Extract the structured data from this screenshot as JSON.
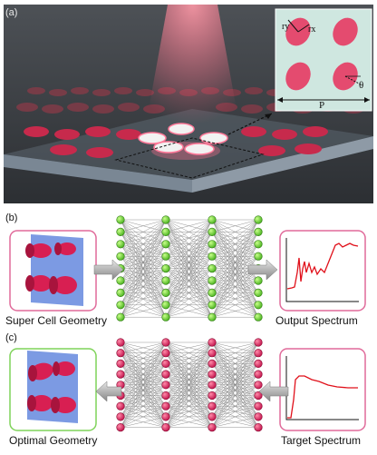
{
  "panel_a": {
    "tag": "(a)",
    "inset_labels": {
      "ry": "ry",
      "rx": "rx",
      "theta": "θ",
      "period": "P"
    }
  },
  "panel_b": {
    "tag": "(b)",
    "input_label": "Super Cell Geometry",
    "output_label": "Output Spectrum"
  },
  "panel_c": {
    "tag": "(c)",
    "output_label": "Optimal Geometry",
    "input_label": "Target Spectrum"
  },
  "colors": {
    "node_green": "#7ddc3a",
    "node_pink": "#e0245e",
    "rod_pink": "#d81f52",
    "frame_pink": "#e06a9a",
    "frame_green": "#7fd35a",
    "curve_red": "#e0101a",
    "plane_blue": "#6e8fe0"
  },
  "network": {
    "layers": 4,
    "nodes_per_layer": 9
  }
}
